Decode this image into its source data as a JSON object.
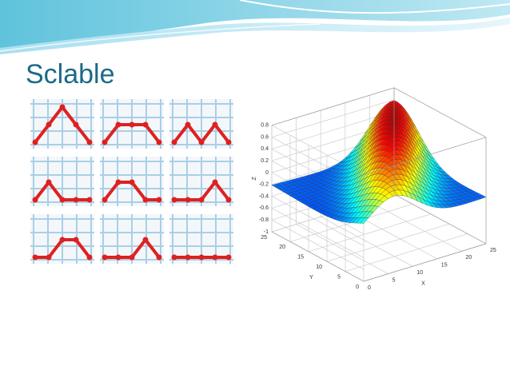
{
  "title": "Sclable",
  "plot": {
    "z_label": "Z",
    "y_label": "Y",
    "x_label": "X",
    "z_ticks": [
      "0.8",
      "0.6",
      "0.4",
      "0.2",
      "0",
      "-0.2",
      "-0.4",
      "-0.6",
      "-0.8",
      "-1"
    ],
    "y_ticks": [
      "25",
      "20",
      "15",
      "10",
      "5",
      "0"
    ],
    "x_ticks": [
      "0",
      "5",
      "10",
      "15",
      "20",
      "25"
    ]
  }
}
